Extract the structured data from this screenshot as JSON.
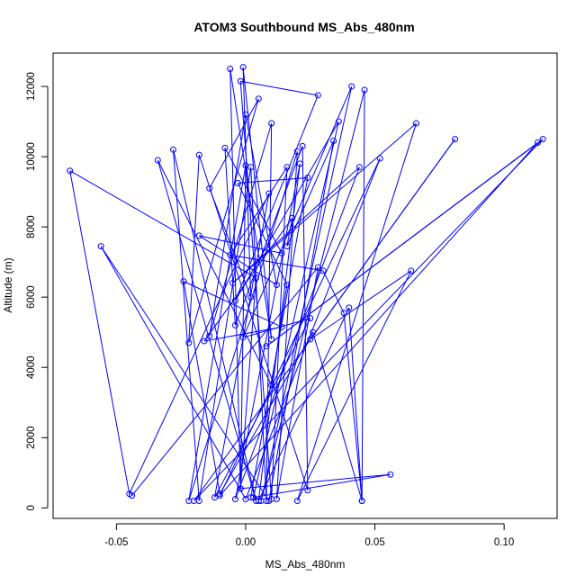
{
  "chart_data": {
    "type": "scatter",
    "title": "ATOM3 Southbound MS_Abs_480nm",
    "xlabel": "MS_Abs_480nm",
    "ylabel": "Altitude (m)",
    "xlim": [
      -0.0745,
      0.1205
    ],
    "ylim": [
      -300,
      12950
    ],
    "xticks": [
      -0.05,
      0.0,
      0.05,
      0.1
    ],
    "xtick_labels": [
      "-0.05",
      "0.00",
      "0.05",
      "0.10"
    ],
    "yticks": [
      0,
      2000,
      4000,
      6000,
      8000,
      10000,
      12000
    ],
    "ytick_labels": [
      "0",
      "2000",
      "4000",
      "6000",
      "8000",
      "10000",
      "12000"
    ],
    "grid": false,
    "legend": "none",
    "colors": {
      "series": "#0000ff",
      "axes": "#000000",
      "background": "#ffffff"
    },
    "series": [
      {
        "mode": "lines+markers",
        "points": [
          [
            -0.044,
            350
          ],
          [
            0.028,
            6850
          ],
          [
            0.012,
            250
          ],
          [
            0.02,
            10150
          ],
          [
            -0.022,
            200
          ],
          [
            0.0,
            9750
          ],
          [
            -0.002,
            550
          ],
          [
            0.004,
            6550
          ],
          [
            -0.068,
            9600
          ],
          [
            -0.045,
            400
          ],
          [
            0.009,
            8950
          ],
          [
            -0.012,
            300
          ],
          [
            0.025,
            5400
          ],
          [
            -0.001,
            4850
          ],
          [
            0.041,
            12000
          ],
          [
            0.006,
            200
          ],
          [
            0.046,
            11900
          ],
          [
            0.045,
            200
          ],
          [
            0.04,
            5700
          ],
          [
            0.005,
            200
          ],
          [
            0.021,
            9800
          ],
          [
            -0.004,
            250
          ],
          [
            0.044,
            9700
          ],
          [
            -0.005,
            6400
          ],
          [
            0.066,
            10950
          ],
          [
            0.02,
            200
          ],
          [
            0.064,
            6750
          ],
          [
            0.025,
            4800
          ],
          [
            0.081,
            10500
          ],
          [
            -0.02,
            200
          ],
          [
            0.115,
            10500
          ],
          [
            0.008,
            4600
          ],
          [
            0.113,
            10400
          ],
          [
            -0.01,
            350
          ],
          [
            0.052,
            9950
          ],
          [
            0.0,
            250
          ],
          [
            -0.056,
            7450
          ],
          [
            0.009,
            200
          ],
          [
            0.034,
            10450
          ],
          [
            0.016,
            7450
          ],
          [
            0.018,
            8250
          ],
          [
            -0.016,
            4750
          ],
          [
            0.014,
            5150
          ],
          [
            -0.024,
            6450
          ],
          [
            -0.01,
            400
          ],
          [
            0.026,
            5000
          ],
          [
            0.045,
            200
          ],
          [
            0.038,
            5550
          ],
          [
            0.03,
            6750
          ],
          [
            -0.006,
            7200
          ],
          [
            0.016,
            9700
          ],
          [
            0.01,
            250
          ],
          [
            -0.002,
            12150
          ],
          [
            0.028,
            11750
          ],
          [
            -0.004,
            5900
          ],
          [
            0.036,
            11000
          ],
          [
            0.003,
            300
          ],
          [
            0.056,
            950
          ],
          [
            -0.002,
            550
          ],
          [
            -0.006,
            12500
          ],
          [
            0.01,
            4800
          ],
          [
            -0.001,
            12550
          ],
          [
            0.002,
            6000
          ],
          [
            -0.014,
            9100
          ],
          [
            0.005,
            11650
          ],
          [
            -0.022,
            4700
          ],
          [
            -0.018,
            10050
          ],
          [
            0.024,
            500
          ],
          [
            0.022,
            10300
          ],
          [
            -0.004,
            5200
          ],
          [
            -0.008,
            10250
          ],
          [
            0.014,
            7250
          ],
          [
            -0.018,
            7750
          ],
          [
            0.012,
            6350
          ],
          [
            0.0,
            11200
          ],
          [
            -0.014,
            4900
          ],
          [
            0.01,
            10950
          ],
          [
            0.008,
            200
          ],
          [
            0.002,
            9700
          ],
          [
            -0.018,
            200
          ],
          [
            -0.028,
            10200
          ],
          [
            0.004,
            200
          ],
          [
            -0.034,
            9900
          ],
          [
            0.01,
            3500
          ],
          [
            0.016,
            6350
          ],
          [
            -0.003,
            9250
          ],
          [
            0.024,
            9400
          ],
          [
            0.002,
            300
          ]
        ]
      }
    ]
  }
}
